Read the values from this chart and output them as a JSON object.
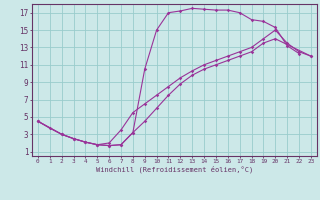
{
  "xlabel": "Windchill (Refroidissement éolien,°C)",
  "bg_color": "#cce8e8",
  "line_color": "#993399",
  "grid_color": "#99cccc",
  "axis_color": "#663366",
  "text_color": "#663366",
  "xlim": [
    -0.5,
    23.5
  ],
  "ylim": [
    0.5,
    18.0
  ],
  "xticks": [
    0,
    1,
    2,
    3,
    4,
    5,
    6,
    7,
    8,
    9,
    10,
    11,
    12,
    13,
    14,
    15,
    16,
    17,
    18,
    19,
    20,
    21,
    22,
    23
  ],
  "yticks": [
    1,
    3,
    5,
    7,
    9,
    11,
    13,
    15,
    17
  ],
  "line1_x": [
    0,
    1,
    2,
    3,
    4,
    5,
    6,
    7,
    8,
    9,
    10,
    11,
    12,
    13,
    14,
    15,
    16,
    17,
    18,
    19,
    20,
    21,
    22
  ],
  "line1_y": [
    4.5,
    3.7,
    3.0,
    2.5,
    2.1,
    1.8,
    1.7,
    1.8,
    3.2,
    10.5,
    15.0,
    17.0,
    17.2,
    17.5,
    17.4,
    17.3,
    17.3,
    17.0,
    16.2,
    16.0,
    15.3,
    13.2,
    12.3
  ],
  "line2_x": [
    0,
    2,
    3,
    4,
    5,
    6,
    7,
    8,
    9,
    10,
    11,
    12,
    13,
    14,
    15,
    16,
    17,
    18,
    19,
    20,
    21,
    22,
    23
  ],
  "line2_y": [
    4.5,
    3.0,
    2.5,
    2.1,
    1.8,
    2.0,
    3.5,
    5.5,
    6.5,
    7.5,
    8.5,
    9.5,
    10.3,
    11.0,
    11.5,
    12.0,
    12.5,
    13.0,
    14.0,
    15.0,
    13.5,
    12.5,
    12.0
  ],
  "line3_x": [
    0,
    2,
    3,
    4,
    5,
    6,
    7,
    8,
    9,
    10,
    11,
    12,
    13,
    14,
    15,
    16,
    17,
    18,
    19,
    20,
    23
  ],
  "line3_y": [
    4.5,
    3.0,
    2.5,
    2.1,
    1.8,
    1.7,
    1.8,
    3.2,
    4.5,
    6.0,
    7.5,
    8.8,
    9.8,
    10.5,
    11.0,
    11.5,
    12.0,
    12.5,
    13.5,
    14.0,
    12.0
  ]
}
